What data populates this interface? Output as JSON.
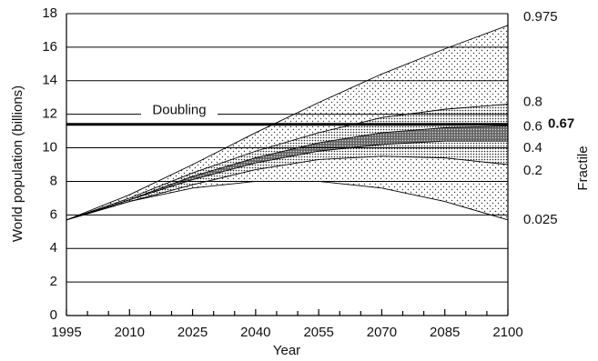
{
  "chart_data": {
    "type": "line",
    "y_label": "World population (billions)",
    "x_label": "Year",
    "y2_label": "Fractile",
    "x": [
      1995,
      2010,
      2025,
      2040,
      2055,
      2070,
      2085,
      2100
    ],
    "series": [
      {
        "name": "0.025",
        "color": "#000000",
        "values": [
          5.7,
          6.8,
          7.6,
          8.0,
          8.0,
          7.6,
          6.8,
          5.7
        ]
      },
      {
        "name": "0.2",
        "color": "#000000",
        "values": [
          5.7,
          6.8,
          7.8,
          8.7,
          9.3,
          9.5,
          9.4,
          9.0
        ]
      },
      {
        "name": "0.4",
        "color": "#000000",
        "values": [
          5.7,
          6.9,
          8.1,
          9.1,
          9.8,
          10.2,
          10.4,
          10.4
        ]
      },
      {
        "name": "0.6",
        "color": "#000000",
        "values": [
          5.7,
          6.9,
          8.3,
          9.4,
          10.3,
          10.9,
          11.2,
          11.3
        ]
      },
      {
        "name": "0.8",
        "color": "#000000",
        "values": [
          5.7,
          7.0,
          8.5,
          9.8,
          10.9,
          11.8,
          12.3,
          12.6
        ]
      },
      {
        "name": "0.975",
        "color": "#000000",
        "values": [
          5.7,
          7.2,
          9.0,
          10.9,
          12.7,
          14.4,
          15.9,
          17.3
        ]
      }
    ],
    "doubling": {
      "label": "Doubling",
      "value": 11.4,
      "fractile": "0.67"
    },
    "xlim": [
      1995,
      2100
    ],
    "xticks": [
      1995,
      2010,
      2025,
      2040,
      2055,
      2070,
      2085,
      2100
    ],
    "ylim": [
      0,
      18
    ],
    "yticks": [
      0,
      2,
      4,
      6,
      8,
      10,
      12,
      14,
      16,
      18
    ],
    "grid": true
  }
}
